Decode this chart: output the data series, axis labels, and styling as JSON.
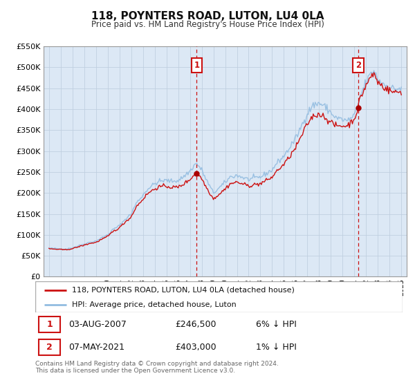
{
  "title": "118, POYNTERS ROAD, LUTON, LU4 0LA",
  "subtitle": "Price paid vs. HM Land Registry's House Price Index (HPI)",
  "legend_line1": "118, POYNTERS ROAD, LUTON, LU4 0LA (detached house)",
  "legend_line2": "HPI: Average price, detached house, Luton",
  "annotation1_date": "03-AUG-2007",
  "annotation1_price": "£246,500",
  "annotation1_hpi": "6% ↓ HPI",
  "annotation2_date": "07-MAY-2021",
  "annotation2_price": "£403,000",
  "annotation2_hpi": "1% ↓ HPI",
  "footer": "Contains HM Land Registry data © Crown copyright and database right 2024.\nThis data is licensed under the Open Government Licence v3.0.",
  "hpi_color": "#92bce0",
  "price_color": "#cc1111",
  "marker_color": "#aa0000",
  "vline_color": "#cc1111",
  "annotation_box_color": "#cc1111",
  "background_color": "#eef3fb",
  "chart_bg": "#dce8f5",
  "grid_color": "#c0cfe0",
  "ylim": [
    0,
    550000
  ],
  "yticks": [
    0,
    50000,
    100000,
    150000,
    200000,
    250000,
    300000,
    350000,
    400000,
    450000,
    500000,
    550000
  ],
  "sale1_year": 2007,
  "sale1_month": 8,
  "sale1_value": 246500,
  "sale2_year": 2021,
  "sale2_month": 5,
  "sale2_value": 403000
}
